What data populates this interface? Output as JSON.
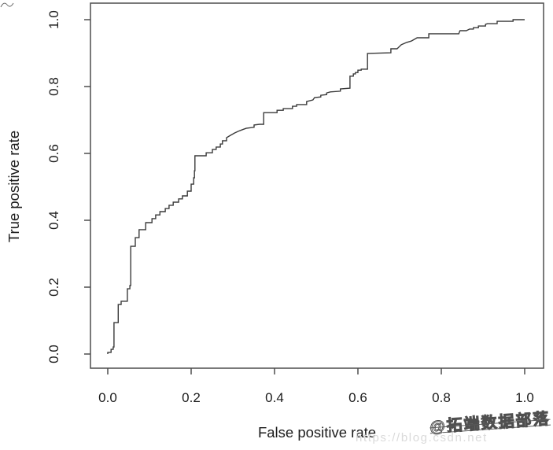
{
  "chart_data": {
    "type": "line",
    "subtype": "roc-step-curve",
    "title": "",
    "xlabel": "False positive rate",
    "ylabel": "True positive rate",
    "xlim": [
      0.0,
      1.0
    ],
    "ylim": [
      0.0,
      1.0
    ],
    "x_ticks": [
      "0.0",
      "0.2",
      "0.4",
      "0.6",
      "0.8",
      "1.0"
    ],
    "y_ticks": [
      "0.0",
      "0.2",
      "0.4",
      "0.6",
      "0.8",
      "1.0"
    ],
    "grid": false,
    "legend_position": "none",
    "box": true,
    "line_color": "#3a3a3a",
    "box_color": "#4d4d4d",
    "text_color": "#1c1c1c",
    "points": [
      [
        0,
        0
      ],
      [
        0,
        0.005
      ],
      [
        0.008,
        0.005
      ],
      [
        0.008,
        0.014
      ],
      [
        0.013,
        0.014
      ],
      [
        0.013,
        0.021
      ],
      [
        0.015,
        0.021
      ],
      [
        0.015,
        0.094
      ],
      [
        0.025,
        0.094
      ],
      [
        0.025,
        0.148
      ],
      [
        0.032,
        0.148
      ],
      [
        0.032,
        0.158
      ],
      [
        0.047,
        0.158
      ],
      [
        0.047,
        0.195
      ],
      [
        0.053,
        0.195
      ],
      [
        0.053,
        0.205
      ],
      [
        0.055,
        0.205
      ],
      [
        0.055,
        0.322
      ],
      [
        0.066,
        0.322
      ],
      [
        0.066,
        0.348
      ],
      [
        0.075,
        0.348
      ],
      [
        0.075,
        0.372
      ],
      [
        0.091,
        0.372
      ],
      [
        0.091,
        0.393
      ],
      [
        0.106,
        0.393
      ],
      [
        0.106,
        0.405
      ],
      [
        0.115,
        0.405
      ],
      [
        0.115,
        0.416
      ],
      [
        0.125,
        0.416
      ],
      [
        0.125,
        0.426
      ],
      [
        0.138,
        0.426
      ],
      [
        0.138,
        0.435
      ],
      [
        0.147,
        0.435
      ],
      [
        0.147,
        0.445
      ],
      [
        0.157,
        0.445
      ],
      [
        0.157,
        0.454
      ],
      [
        0.17,
        0.454
      ],
      [
        0.17,
        0.464
      ],
      [
        0.179,
        0.464
      ],
      [
        0.179,
        0.473
      ],
      [
        0.191,
        0.473
      ],
      [
        0.191,
        0.487
      ],
      [
        0.2,
        0.487
      ],
      [
        0.2,
        0.508
      ],
      [
        0.206,
        0.508
      ],
      [
        0.206,
        0.527
      ],
      [
        0.208,
        0.527
      ],
      [
        0.208,
        0.548
      ],
      [
        0.209,
        0.548
      ],
      [
        0.209,
        0.593
      ],
      [
        0.236,
        0.593
      ],
      [
        0.236,
        0.602
      ],
      [
        0.251,
        0.602
      ],
      [
        0.251,
        0.612
      ],
      [
        0.26,
        0.612
      ],
      [
        0.26,
        0.619
      ],
      [
        0.27,
        0.619
      ],
      [
        0.27,
        0.628
      ],
      [
        0.275,
        0.628
      ],
      [
        0.275,
        0.638
      ],
      [
        0.285,
        0.638
      ],
      [
        0.285,
        0.647
      ],
      [
        0.294,
        0.654
      ],
      [
        0.304,
        0.661
      ],
      [
        0.313,
        0.666
      ],
      [
        0.323,
        0.671
      ],
      [
        0.332,
        0.675
      ],
      [
        0.351,
        0.678
      ],
      [
        0.351,
        0.685
      ],
      [
        0.364,
        0.687
      ],
      [
        0.374,
        0.687
      ],
      [
        0.374,
        0.722
      ],
      [
        0.406,
        0.722
      ],
      [
        0.406,
        0.729
      ],
      [
        0.421,
        0.729
      ],
      [
        0.421,
        0.734
      ],
      [
        0.443,
        0.734
      ],
      [
        0.443,
        0.741
      ],
      [
        0.453,
        0.741
      ],
      [
        0.453,
        0.746
      ],
      [
        0.477,
        0.746
      ],
      [
        0.477,
        0.755
      ],
      [
        0.492,
        0.76
      ],
      [
        0.496,
        0.767
      ],
      [
        0.511,
        0.769
      ],
      [
        0.511,
        0.774
      ],
      [
        0.525,
        0.776
      ],
      [
        0.525,
        0.781
      ],
      [
        0.534,
        0.784
      ],
      [
        0.558,
        0.786
      ],
      [
        0.558,
        0.793
      ],
      [
        0.581,
        0.795
      ],
      [
        0.581,
        0.831
      ],
      [
        0.589,
        0.831
      ],
      [
        0.589,
        0.838
      ],
      [
        0.594,
        0.838
      ],
      [
        0.594,
        0.842
      ],
      [
        0.6,
        0.842
      ],
      [
        0.6,
        0.849
      ],
      [
        0.608,
        0.849
      ],
      [
        0.608,
        0.852
      ],
      [
        0.623,
        0.852
      ],
      [
        0.623,
        0.899
      ],
      [
        0.679,
        0.901
      ],
      [
        0.679,
        0.913
      ],
      [
        0.694,
        0.913
      ],
      [
        0.704,
        0.925
      ],
      [
        0.717,
        0.932
      ],
      [
        0.728,
        0.936
      ],
      [
        0.742,
        0.946
      ],
      [
        0.77,
        0.946
      ],
      [
        0.77,
        0.958
      ],
      [
        0.842,
        0.958
      ],
      [
        0.843,
        0.962
      ],
      [
        0.845,
        0.967
      ],
      [
        0.86,
        0.967
      ],
      [
        0.868,
        0.972
      ],
      [
        0.877,
        0.972
      ],
      [
        0.877,
        0.976
      ],
      [
        0.889,
        0.976
      ],
      [
        0.889,
        0.981
      ],
      [
        0.906,
        0.981
      ],
      [
        0.906,
        0.986
      ],
      [
        0.911,
        0.988
      ],
      [
        0.934,
        0.988
      ],
      [
        0.934,
        0.995
      ],
      [
        0.972,
        0.995
      ],
      [
        0.972,
        1
      ],
      [
        1,
        1
      ]
    ]
  },
  "watermarks": {
    "url_text": "https://blog.csdn.net",
    "url_color": "#dadada",
    "credit_text": "@拓端数据部落",
    "credit_color": "#4f4f4f"
  }
}
